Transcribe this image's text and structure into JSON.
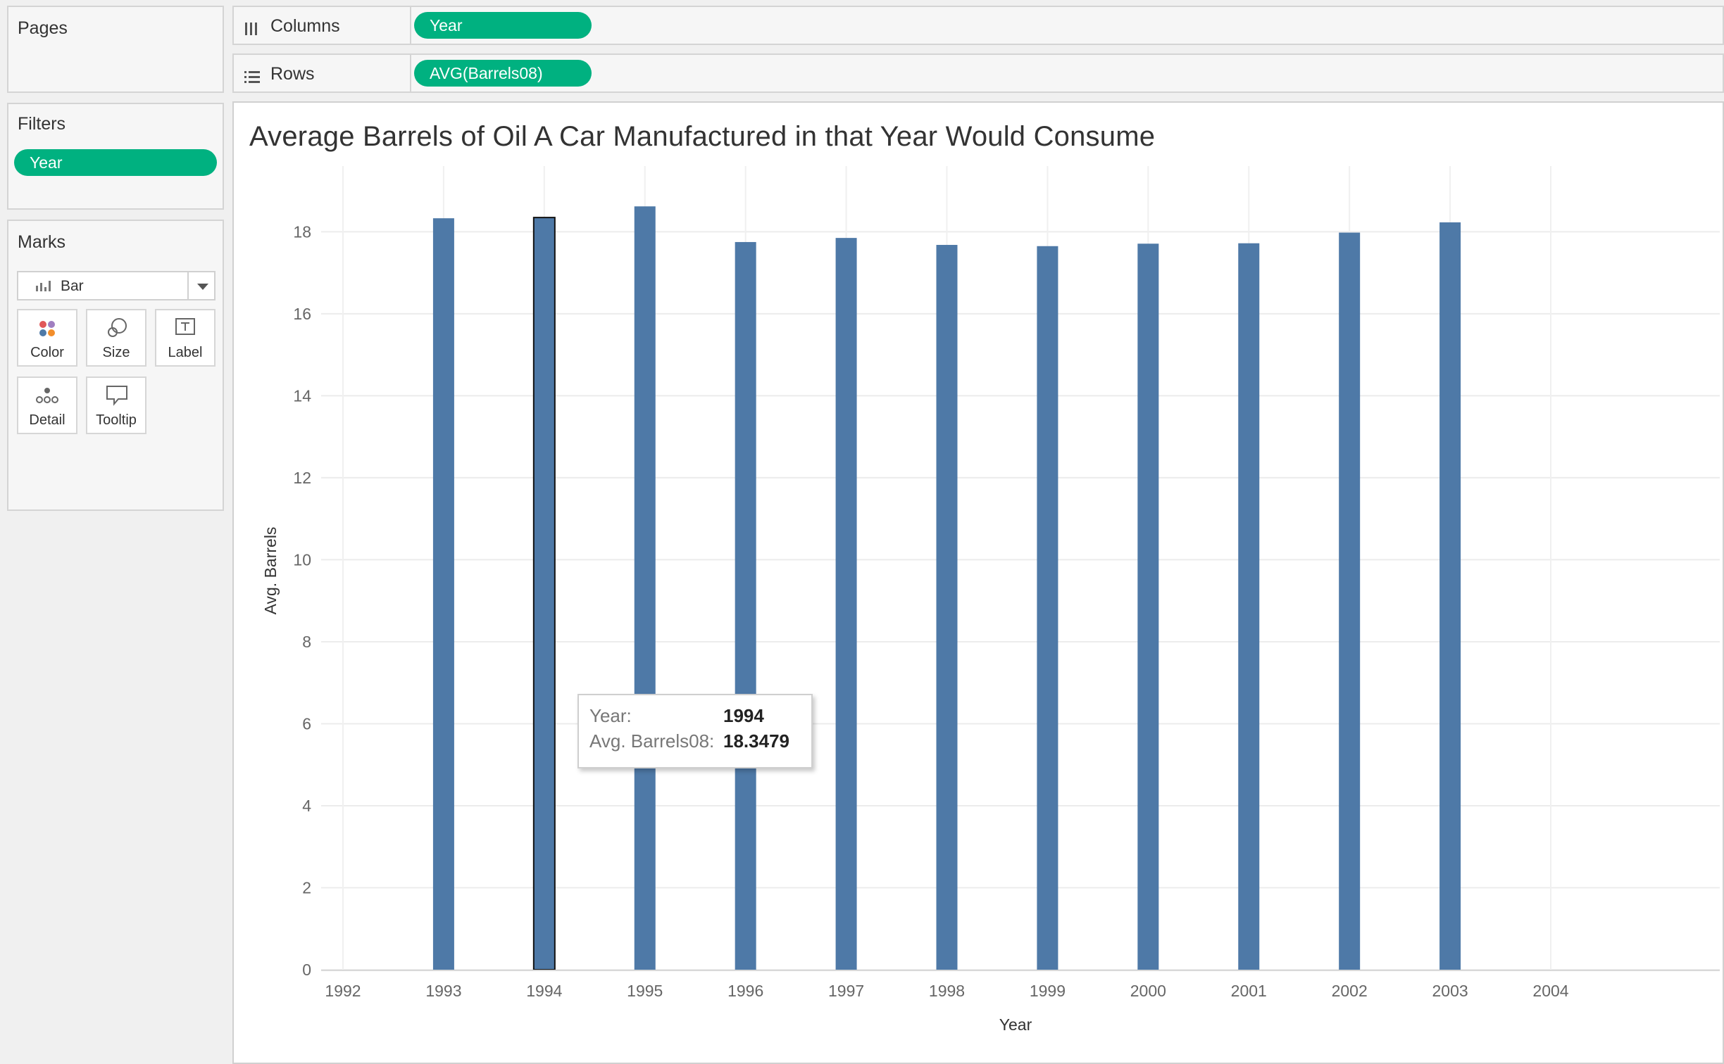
{
  "cards": {
    "pages": {
      "title": "Pages"
    },
    "filters": {
      "title": "Filters",
      "pills": [
        "Year"
      ]
    },
    "marks": {
      "title": "Marks",
      "mark_type": "Bar",
      "buttons": [
        "Color",
        "Size",
        "Label",
        "Detail",
        "Tooltip"
      ]
    }
  },
  "shelves": {
    "columns": {
      "label": "Columns",
      "pill": "Year",
      "icon": "columns-icon"
    },
    "rows": {
      "label": "Rows",
      "pill": "AVG(Barrels08)",
      "icon": "rows-icon"
    }
  },
  "colors": {
    "pill": "#00b180",
    "bar": "#4e79a7",
    "selected_outline": "#111111"
  },
  "tooltip": {
    "year_key": "Year:",
    "year_value": "1994",
    "barrels_key": "Avg. Barrels08:",
    "barrels_value": "18.3479"
  },
  "chart_data": {
    "type": "bar",
    "title": "Average Barrels of Oil A Car Manufactured in that Year Would Consume",
    "xlabel": "Year",
    "ylabel": "Avg. Barrels",
    "x_ticks": [
      "1992",
      "1993",
      "1994",
      "1995",
      "1996",
      "1997",
      "1998",
      "1999",
      "2000",
      "2001",
      "2002",
      "2003",
      "2004"
    ],
    "xlim": [
      1992,
      2004
    ],
    "ylim": [
      0,
      19.5
    ],
    "y_ticks": [
      0,
      2,
      4,
      6,
      8,
      10,
      12,
      14,
      16,
      18
    ],
    "categories": [
      1993,
      1994,
      1995,
      1996,
      1997,
      1998,
      1999,
      2000,
      2001,
      2002,
      2003
    ],
    "values": [
      18.33,
      18.3479,
      18.62,
      17.75,
      17.85,
      17.68,
      17.65,
      17.71,
      17.72,
      17.98,
      18.23
    ],
    "selected": 1994,
    "grid": true
  }
}
